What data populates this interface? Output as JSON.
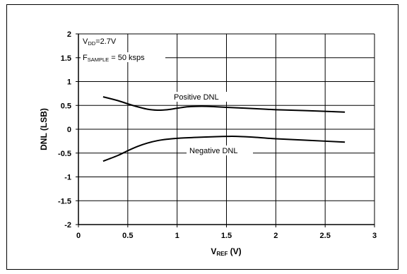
{
  "chart_data": {
    "type": "line",
    "title": "",
    "xlabel": {
      "main": "V",
      "sub": "REF",
      "suffix": " (V)"
    },
    "ylabel": "DNL (LSB)",
    "xlim": [
      0,
      3
    ],
    "ylim": [
      -2,
      2
    ],
    "x_ticks": [
      0,
      0.5,
      1,
      1.5,
      2,
      2.5,
      3
    ],
    "y_ticks": [
      -2,
      -1.5,
      -1,
      -0.5,
      0,
      0.5,
      1,
      1.5,
      2
    ],
    "x_tick_labels": [
      "0",
      "0.5",
      "1",
      "1.5",
      "2",
      "2.5",
      "3"
    ],
    "y_tick_labels": [
      "-2",
      "-1.5",
      "-1",
      "-0.5",
      "0",
      "0.5",
      "1",
      "1.5",
      "2"
    ],
    "grid": true,
    "conditions": {
      "vdd": {
        "main": "V",
        "sub": "DD",
        "suffix": "=2.7V"
      },
      "fsample": {
        "main": "F",
        "sub": "SAMPLE",
        "suffix": " = 50 ksps"
      }
    },
    "series": [
      {
        "name": "Positive DNL",
        "x": [
          0.25,
          0.4,
          0.55,
          0.7,
          0.8,
          0.9,
          1.0,
          1.1,
          1.2,
          1.3,
          1.4,
          1.5,
          1.7,
          2.0,
          2.3,
          2.7
        ],
        "y": [
          0.68,
          0.6,
          0.5,
          0.42,
          0.4,
          0.41,
          0.44,
          0.47,
          0.48,
          0.48,
          0.47,
          0.46,
          0.44,
          0.41,
          0.39,
          0.36
        ]
      },
      {
        "name": "Negative DNL",
        "x": [
          0.25,
          0.4,
          0.5,
          0.6,
          0.7,
          0.8,
          0.9,
          1.0,
          1.2,
          1.4,
          1.5,
          1.6,
          1.8,
          2.0,
          2.3,
          2.7
        ],
        "y": [
          -0.67,
          -0.55,
          -0.45,
          -0.36,
          -0.29,
          -0.24,
          -0.21,
          -0.19,
          -0.17,
          -0.155,
          -0.15,
          -0.15,
          -0.17,
          -0.2,
          -0.23,
          -0.27
        ]
      }
    ],
    "colors": {
      "line": "#000000",
      "grid": "#000000"
    }
  }
}
